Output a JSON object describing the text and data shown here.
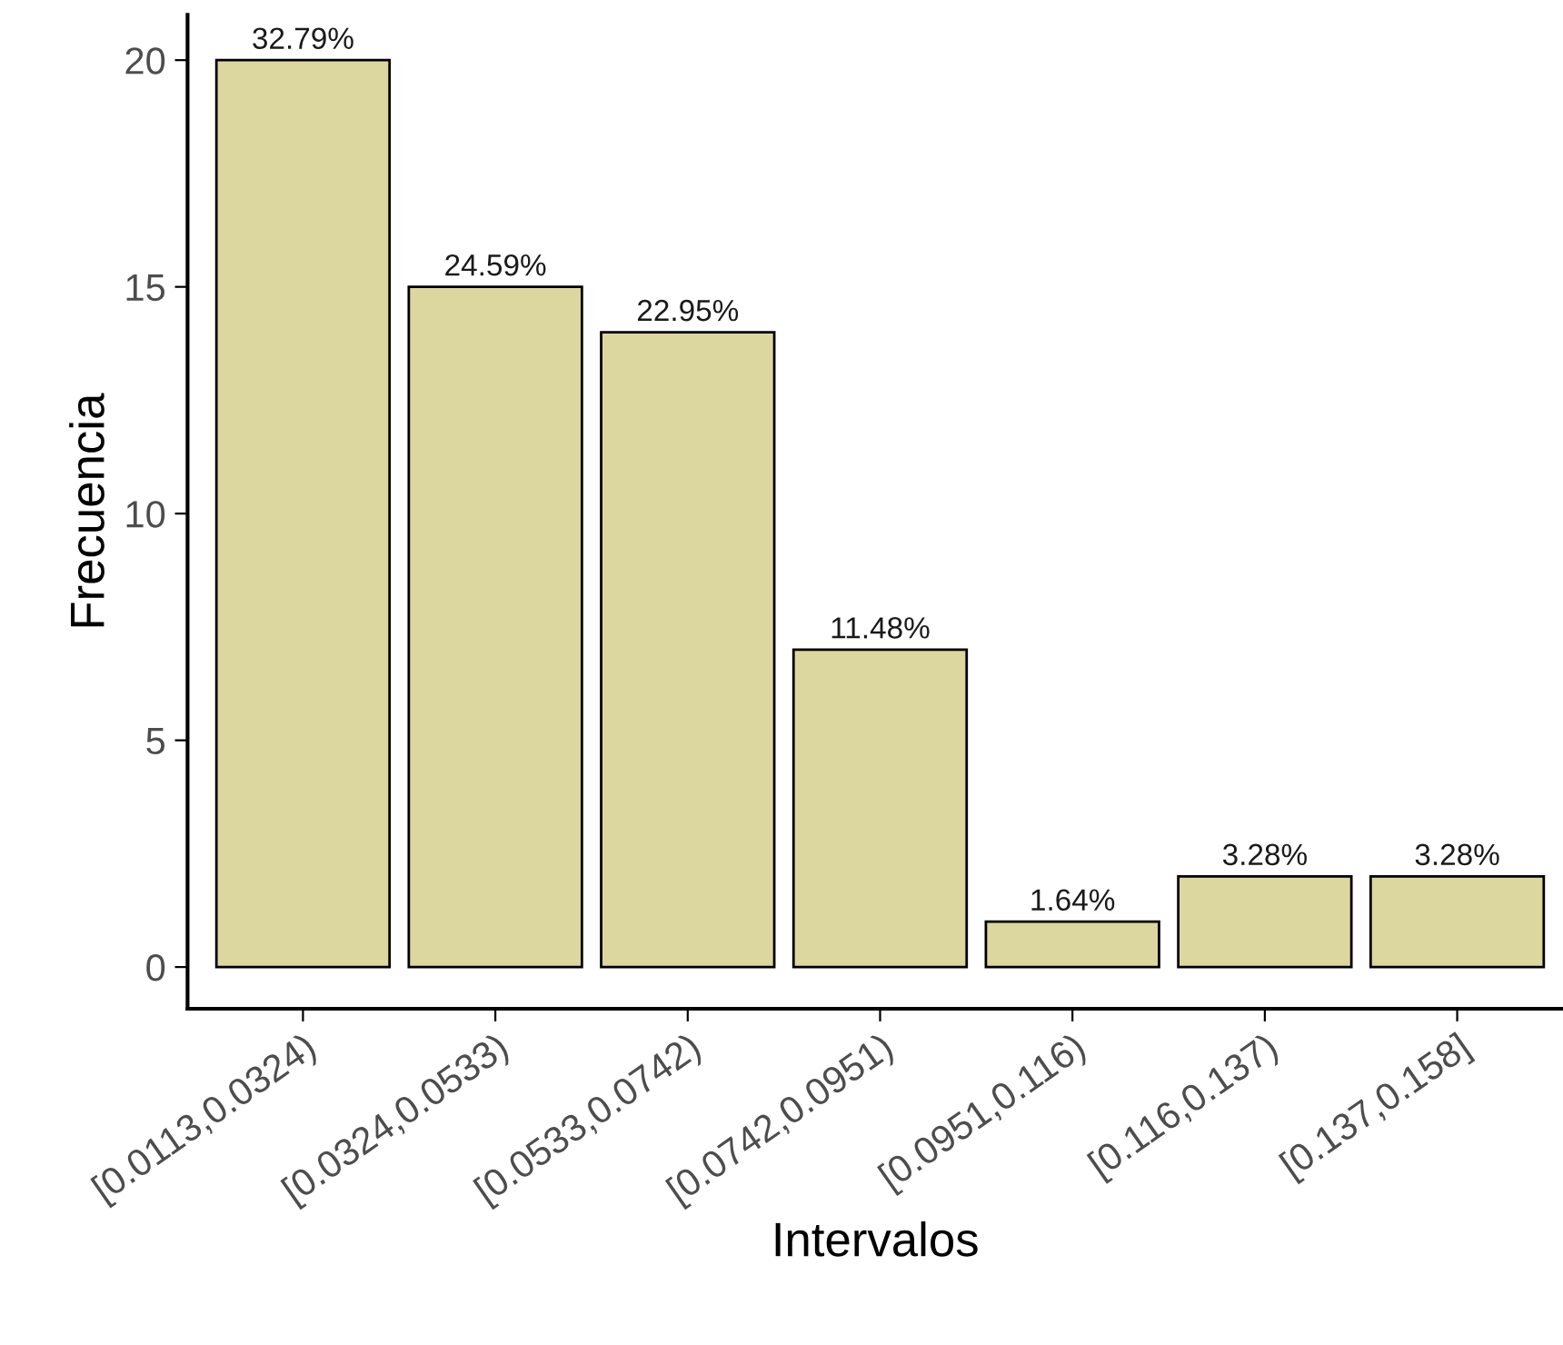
{
  "chart_data": {
    "type": "bar",
    "xlabel": "Intervalos",
    "ylabel": "Frecuencia",
    "categories": [
      "[0.0113,0.0324)",
      "[0.0324,0.0533)",
      "[0.0533,0.0742)",
      "[0.0742,0.0951)",
      "[0.0951,0.116)",
      "[0.116,0.137)",
      "[0.137,0.158]"
    ],
    "values": [
      20,
      15,
      14,
      7,
      1,
      2,
      2
    ],
    "annotations": [
      {
        "text": "32.79%",
        "x": "[0.0113,0.0324)",
        "y": 20
      },
      {
        "text": "24.59%",
        "x": "[0.0324,0.0533)",
        "y": 15
      },
      {
        "text": "22.95%",
        "x": "[0.0533,0.0742)",
        "y": 14
      },
      {
        "text": "11.48%",
        "x": "[0.0742,0.0951)",
        "y": 7
      },
      {
        "text": "1.64%",
        "x": "[0.0951,0.116)",
        "y": 1
      },
      {
        "text": "3.28%",
        "x": "[0.116,0.137)",
        "y": 2
      },
      {
        "text": "3.28%",
        "x": "[0.137,0.158]",
        "y": 2
      }
    ],
    "color": "#dcd69f",
    "ylim": [
      -0.92,
      21
    ],
    "yticks": [
      0,
      5,
      10,
      15,
      20
    ],
    "grid": false,
    "legend": false
  }
}
